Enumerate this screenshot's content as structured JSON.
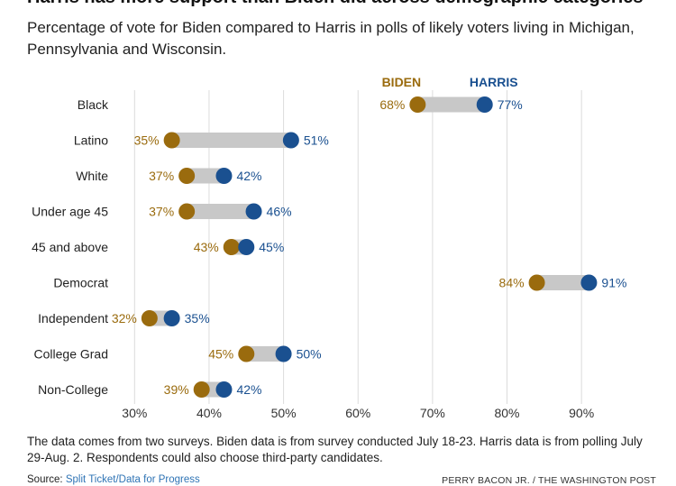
{
  "title": "Harris has more support than Biden did across demographic categories",
  "subtitle": "Percentage of vote for Biden compared to Harris in polls of likely voters living in Michigan, Pennsylvania and Wisconsin.",
  "note": "The data comes from two surveys. Biden data is from survey conducted July 18-23. Harris data is from polling July 29-Aug. 2. Respondents could also choose third-party candidates.",
  "source_label": "Source:",
  "source_link": "Split Ticket/Data for Progress",
  "credit": "PERRY BACON JR. / THE WASHINGTON POST",
  "colors": {
    "biden": "#9a6b0e",
    "harris": "#1a5090",
    "bar": "#c8c8c8",
    "grid": "#dcdcdc"
  },
  "chart_data": {
    "type": "dumbbell",
    "categories": [
      "Black",
      "Latino",
      "White",
      "Under age 45",
      "45 and above",
      "Democrat",
      "Independent",
      "College Grad",
      "Non-College"
    ],
    "series": [
      {
        "name": "BIDEN",
        "values": [
          68,
          35,
          37,
          37,
          43,
          84,
          32,
          45,
          39
        ]
      },
      {
        "name": "HARRIS",
        "values": [
          77,
          51,
          42,
          46,
          45,
          91,
          35,
          50,
          42
        ]
      }
    ],
    "x_ticks": [
      "30%",
      "40%",
      "50%",
      "60%",
      "70%",
      "80%",
      "90%"
    ],
    "x_tick_values": [
      30,
      40,
      50,
      60,
      70,
      80,
      90
    ],
    "xlim": [
      25,
      97
    ],
    "value_suffix": "%",
    "grid": true,
    "legend": "inline, above the first row"
  }
}
